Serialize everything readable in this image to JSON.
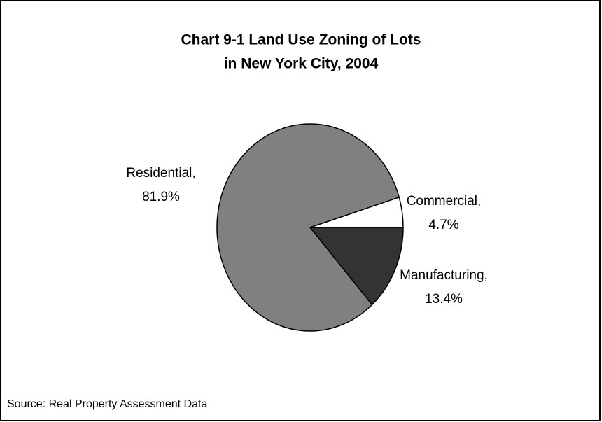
{
  "chart_data": {
    "type": "pie",
    "title": [
      "Chart 9-1 Land Use Zoning of Lots",
      "in New York City, 2004"
    ],
    "categories": [
      "Manufacturing,",
      "Residential,",
      "Commercial,"
    ],
    "values": [
      13.4,
      81.9,
      4.7
    ],
    "value_labels": [
      "13.4%",
      "81.9%",
      "4.7%"
    ],
    "colors": [
      "#333333",
      "#808080",
      "#ffffff"
    ],
    "source": "Source: Real Property Assessment Data"
  }
}
